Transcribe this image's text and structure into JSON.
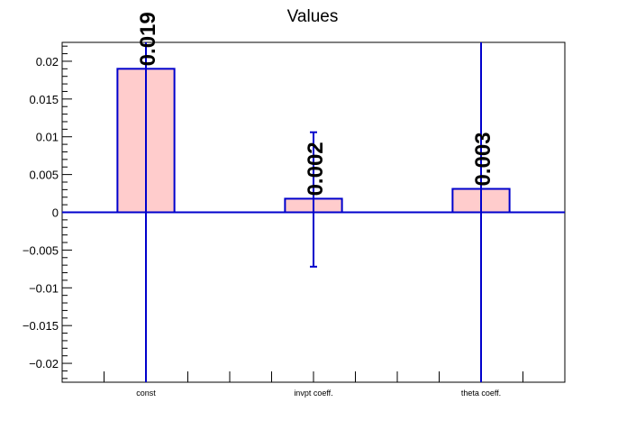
{
  "chart_data": {
    "type": "bar",
    "title": "Values",
    "xlabel": "",
    "ylabel": "",
    "categories": [
      "const",
      "invpt coeff.",
      "theta coeff."
    ],
    "values": [
      0.019,
      0.0018,
      0.0031
    ],
    "value_labels": [
      "0.019",
      "0.002",
      "0.003"
    ],
    "error_low": [
      -0.0225,
      -0.0072,
      -0.0225
    ],
    "error_high": [
      0.0225,
      0.0106,
      0.0225
    ],
    "ylim": [
      -0.0225,
      0.0225
    ],
    "yticks": [
      -0.02,
      -0.015,
      -0.01,
      -0.005,
      0,
      0.005,
      0.01,
      0.015,
      0.02
    ],
    "ytick_labels": [
      "−0.02",
      "−0.015",
      "−0.01",
      "−0.005",
      "0",
      "0.005",
      "0.01",
      "0.015",
      "0.02"
    ],
    "grid": false,
    "colors": {
      "bar_fill": "#ffcccc",
      "bar_edge": "#0000cc",
      "error_bar": "#0000cc",
      "zero_line": "#0000cc",
      "axis": "#000000"
    }
  }
}
